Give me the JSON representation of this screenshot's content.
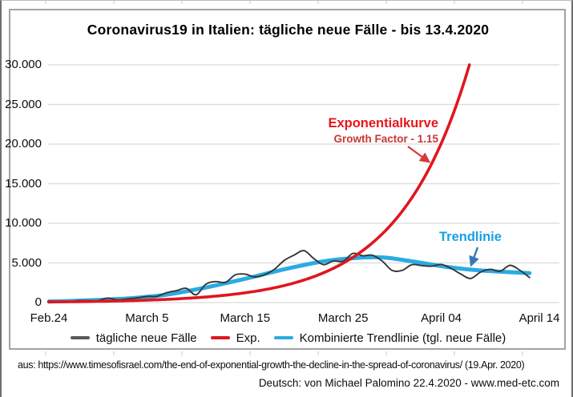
{
  "page": {
    "title": "Coronavirus19 in Italien: tägliche neue Fälle - bis 13.4.2020",
    "source_line": "aus: https://www.timesofisrael.com/the-end-of-exponential-growth-the-decline-in-the-spread-of-coronavirus/ (19.Apr. 2020)",
    "credit_line": "Deutsch: von Michael Palomino 22.4.2020 - www.med-etc.com"
  },
  "annotations": {
    "exponential_label": "Exponentialkurve",
    "growth_factor_label": "Growth Factor - 1.15",
    "trendline_label": "Trendlinie"
  },
  "legend": [
    {
      "label": "tägliche neue Fälle",
      "color": "#595959"
    },
    {
      "label": "Exp.",
      "color": "#e0161f"
    },
    {
      "label": "Kombinierte Trendlinie (tgl. neue Fälle)",
      "color": "#2aabe2"
    }
  ],
  "chart_data": {
    "type": "line",
    "title": "Coronavirus19 in Italien: tägliche neue Fälle - bis 13.4.2020",
    "x_start_date": "Feb 24 2020",
    "x_end_date": "April 14 2020",
    "x_tick_labels": [
      "Feb.24",
      "March 5",
      "March 15",
      "March 25",
      "April 04",
      "April 14"
    ],
    "x_tick_days": [
      0,
      10,
      20,
      30,
      40,
      50
    ],
    "y_ticks": [
      0,
      5000,
      10000,
      15000,
      20000,
      25000,
      30000
    ],
    "y_tick_labels": [
      "0",
      "5.000",
      "10.000",
      "15.000",
      "20.000",
      "25.000",
      "30.000"
    ],
    "ylim": [
      0,
      30000
    ],
    "grid": "horizontal",
    "legend_position": "bottom",
    "series": [
      {
        "name": "tägliche neue Fälle",
        "type": "daily_values",
        "color": "#363636",
        "start_day": 0,
        "values": [
          221,
          93,
          78,
          250,
          238,
          240,
          566,
          342,
          466,
          587,
          769,
          778,
          1247,
          1492,
          1797,
          977,
          2313,
          2651,
          2547,
          3497,
          3590,
          3233,
          3526,
          4207,
          5322,
          5986,
          6557,
          5560,
          4789,
          5249,
          5210,
          6203,
          5909,
          5974,
          5217,
          4050,
          4053,
          4782,
          4668,
          4585,
          4805,
          4316,
          3599,
          3039,
          3836,
          4204,
          3951,
          4694,
          4092,
          3153
        ]
      },
      {
        "name": "Exp.",
        "type": "exponential",
        "color": "#e0161f",
        "start_value": 75,
        "growth_factor": 1.15,
        "annotation": "Growth Factor - 1.15",
        "clip_at": 30000
      },
      {
        "name": "Kombinierte Trendlinie (tgl. neue Fälle)",
        "type": "trendline",
        "color": "#2aabe2",
        "points": [
          [
            0,
            120
          ],
          [
            4,
            280
          ],
          [
            8,
            520
          ],
          [
            12,
            1000
          ],
          [
            16,
            1900
          ],
          [
            20,
            3000
          ],
          [
            24,
            4200
          ],
          [
            28,
            5200
          ],
          [
            31,
            5600
          ],
          [
            34,
            5700
          ],
          [
            37,
            5200
          ],
          [
            40,
            4600
          ],
          [
            43,
            4150
          ],
          [
            46,
            3900
          ],
          [
            49,
            3720
          ]
        ]
      }
    ]
  }
}
